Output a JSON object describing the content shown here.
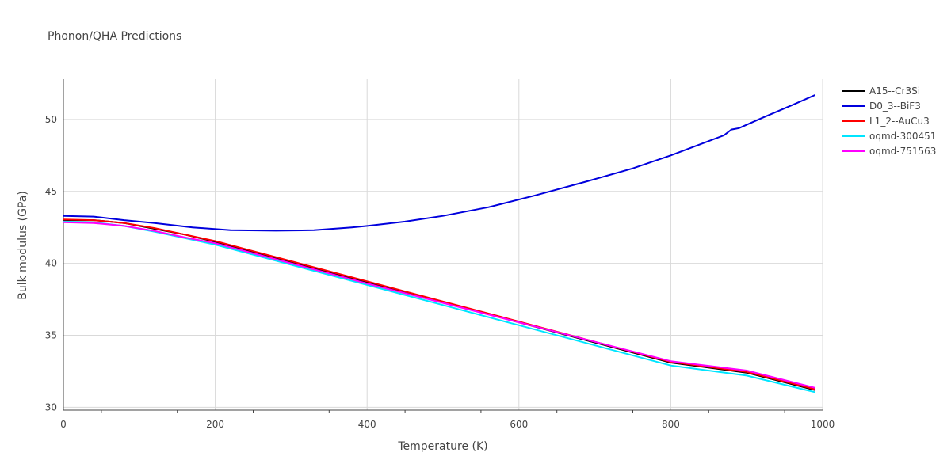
{
  "chart_data": {
    "type": "line",
    "title": "Phonon/QHA Predictions",
    "xlabel": "Temperature (K)",
    "ylabel": "Bulk modulus (GPa)",
    "xlim": [
      0,
      1000
    ],
    "ylim": [
      29.8,
      52.8
    ],
    "x_ticks": [
      0,
      200,
      400,
      600,
      800,
      1000
    ],
    "y_ticks": [
      30,
      35,
      40,
      45,
      50
    ],
    "grid": true,
    "legend_position": "top-right",
    "series": [
      {
        "name": "A15--Cr3Si",
        "color": "#000000",
        "x": [
          0,
          40,
          80,
          120,
          160,
          200,
          250,
          300,
          350,
          400,
          500,
          600,
          700,
          800,
          900,
          990
        ],
        "y": [
          43.0,
          43.0,
          42.8,
          42.4,
          42.0,
          41.5,
          40.8,
          40.1,
          39.4,
          38.7,
          37.3,
          35.9,
          34.5,
          33.1,
          32.4,
          31.2
        ]
      },
      {
        "name": "D0_3--BiF3",
        "color": "#0000dd",
        "x": [
          0,
          40,
          80,
          120,
          170,
          220,
          280,
          330,
          380,
          400,
          450,
          500,
          560,
          620,
          690,
          750,
          800,
          840,
          870,
          880,
          890,
          920,
          960,
          990
        ],
        "y": [
          43.3,
          43.25,
          43.0,
          42.8,
          42.5,
          42.3,
          42.27,
          42.3,
          42.5,
          42.6,
          42.9,
          43.3,
          43.9,
          44.7,
          45.7,
          46.6,
          47.5,
          48.3,
          48.9,
          49.3,
          49.4,
          50.1,
          51.0,
          51.7
        ]
      },
      {
        "name": "L1_2--AuCu3",
        "color": "#ff0000",
        "x": [
          0,
          40,
          80,
          120,
          160,
          200,
          250,
          300,
          350,
          400,
          500,
          600,
          700,
          800,
          900,
          990
        ],
        "y": [
          43.05,
          43.0,
          42.8,
          42.45,
          42.0,
          41.55,
          40.85,
          40.15,
          39.45,
          38.75,
          37.35,
          35.95,
          34.55,
          33.15,
          32.45,
          31.25
        ]
      },
      {
        "name": "oqmd-300451",
        "color": "#00e5ff",
        "x": [
          0,
          40,
          80,
          120,
          160,
          200,
          250,
          300,
          350,
          400,
          500,
          600,
          700,
          800,
          900,
          990
        ],
        "y": [
          42.9,
          42.85,
          42.6,
          42.2,
          41.75,
          41.3,
          40.6,
          39.9,
          39.2,
          38.5,
          37.1,
          35.7,
          34.3,
          32.9,
          32.2,
          31.05
        ]
      },
      {
        "name": "oqmd-751563",
        "color": "#ff00ff",
        "x": [
          0,
          40,
          80,
          120,
          160,
          200,
          250,
          300,
          350,
          400,
          500,
          600,
          700,
          800,
          900,
          990
        ],
        "y": [
          42.85,
          42.8,
          42.6,
          42.25,
          41.8,
          41.4,
          40.7,
          40.0,
          39.3,
          38.6,
          37.25,
          35.9,
          34.55,
          33.2,
          32.55,
          31.35
        ]
      }
    ]
  }
}
